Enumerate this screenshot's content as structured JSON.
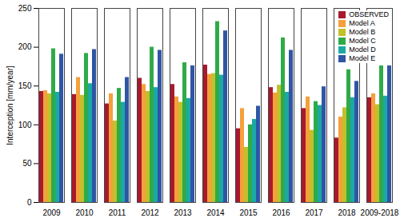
{
  "chart_data": {
    "type": "bar",
    "y_label": "Interception [mm/year]",
    "categories": [
      "2009",
      "2010",
      "2011",
      "2012",
      "2013",
      "2014",
      "2015",
      "2016",
      "2017",
      "2018",
      "2009-2018"
    ],
    "series": [
      {
        "name": "OBSERVED",
        "color": "#a8192e",
        "values": [
          143,
          139,
          127,
          160,
          152,
          177,
          95,
          148,
          121,
          83,
          135
        ]
      },
      {
        "name": "Model A",
        "color": "#f5a03a",
        "values": [
          144,
          161,
          140,
          152,
          136,
          165,
          121,
          141,
          136,
          110,
          140
        ]
      },
      {
        "name": "Model B",
        "color": "#c2c02b",
        "values": [
          140,
          138,
          105,
          143,
          129,
          166,
          71,
          151,
          93,
          122,
          126
        ]
      },
      {
        "name": "Model C",
        "color": "#2faa48",
        "values": [
          198,
          192,
          147,
          200,
          180,
          233,
          100,
          212,
          130,
          171,
          176
        ]
      },
      {
        "name": "Model D",
        "color": "#1ba9a5",
        "values": [
          142,
          153,
          129,
          148,
          134,
          164,
          107,
          142,
          125,
          135,
          137
        ]
      },
      {
        "name": "Model E",
        "color": "#2f55a4",
        "values": [
          191,
          197,
          161,
          196,
          176,
          221,
          124,
          196,
          149,
          156,
          176
        ]
      }
    ],
    "ylim": [
      0,
      250
    ],
    "yticks": [
      0,
      50,
      100,
      150,
      200,
      250
    ],
    "legend": "top-right",
    "grid": false
  }
}
